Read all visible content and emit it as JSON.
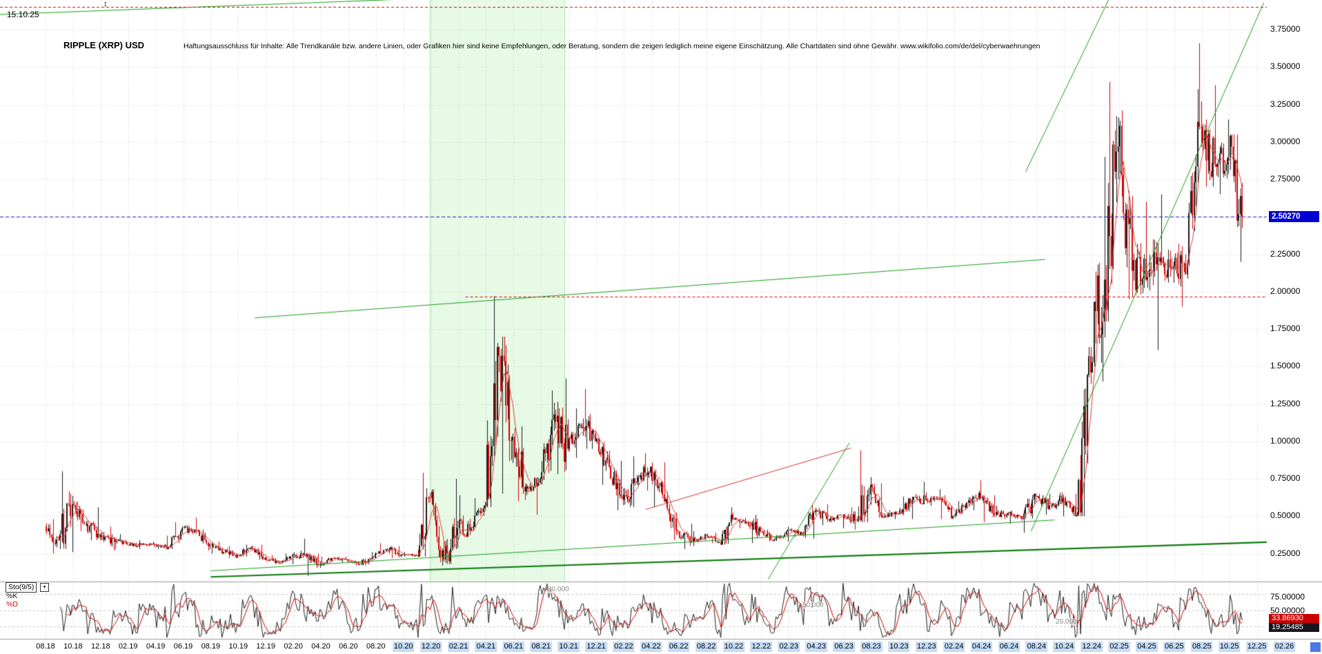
{
  "header": {
    "date": "15.10.25",
    "title": "RIPPLE (XRP) USD",
    "disclaimer": "Haftungsausschluss für Inhalte: Alle Trendkanäle bzw. andere Linien, oder Grafiken hier sind keine Empfehlungen, oder Beratung, sondern die zeigen lediglich meine eigene Einschätzung. Alle Chartdaten sind ohne Gewähr.  www.wikifolio.com/de/del/cyberwaehrungen",
    "resize_marker": "↕"
  },
  "price_axis_marker": {
    "label": "2.50270",
    "value": 2.5027,
    "bg": "#0000d2"
  },
  "x_axis": {
    "highlight_from_index": 13,
    "highlight_bg": "#c5dcf5"
  },
  "stochastic_panel": {
    "indicator_label": "Sto(9/5)",
    "add_button": "+",
    "k_label": "%K",
    "d_label": "%D",
    "guides": [
      {
        "label": "80.000",
        "value": 80
      },
      {
        "label": "50.000",
        "value": 50
      },
      {
        "label": "20.000",
        "value": 20
      }
    ],
    "ticks": [
      "75.00000",
      "50.00000",
      "25.00000"
    ],
    "d_value_box": {
      "label": "33.86930",
      "value": 33.8693,
      "bg": "#cc0000"
    },
    "k_value_box": {
      "label": "19.25485",
      "value": 19.25485,
      "bg": "#16161e"
    }
  },
  "chart_data": {
    "type": "candlestick",
    "title": "RIPPLE (XRP) USD",
    "start_month": "2018-08",
    "months_per_candle": 1,
    "ylim": [
      0,
      3.95
    ],
    "last_price": 2.5027,
    "y_tick_labels": [
      "3.75000",
      "3.50000",
      "3.25000",
      "3.00000",
      "2.75000",
      "2.50000",
      "2.25000",
      "2.00000",
      "1.75000",
      "1.50000",
      "1.25000",
      "1.00000",
      "0.75000",
      "0.50000",
      "0.25000"
    ],
    "x_tick_labels": [
      "08.18",
      "10.18",
      "12.18",
      "02.19",
      "04.19",
      "06.19",
      "08.19",
      "10.19",
      "12.19",
      "02.20",
      "04.20",
      "06.20",
      "08.20",
      "10.20",
      "12.20",
      "02.21",
      "04.21",
      "06.21",
      "08.21",
      "10.21",
      "12.21",
      "02.22",
      "04.22",
      "06.22",
      "08.22",
      "10.22",
      "12.22",
      "02.23",
      "04.23",
      "06.23",
      "08.23",
      "10.23",
      "12.23",
      "02.24",
      "04.24",
      "06.24",
      "08.24",
      "10.24",
      "12.24",
      "02.25",
      "04.25",
      "06.25",
      "08.25",
      "10.25",
      "12.25",
      "02.26"
    ],
    "candles_ohlc": [
      [
        0.43,
        0.48,
        0.25,
        0.34
      ],
      [
        0.34,
        0.8,
        0.26,
        0.58
      ],
      [
        0.58,
        0.6,
        0.4,
        0.45
      ],
      [
        0.45,
        0.56,
        0.34,
        0.36
      ],
      [
        0.36,
        0.43,
        0.27,
        0.35
      ],
      [
        0.35,
        0.38,
        0.28,
        0.31
      ],
      [
        0.31,
        0.34,
        0.28,
        0.31
      ],
      [
        0.31,
        0.33,
        0.29,
        0.31
      ],
      [
        0.31,
        0.37,
        0.28,
        0.29
      ],
      [
        0.29,
        0.46,
        0.28,
        0.42
      ],
      [
        0.42,
        0.49,
        0.38,
        0.4
      ],
      [
        0.4,
        0.41,
        0.27,
        0.31
      ],
      [
        0.31,
        0.33,
        0.25,
        0.26
      ],
      [
        0.26,
        0.3,
        0.22,
        0.24
      ],
      [
        0.24,
        0.31,
        0.23,
        0.29
      ],
      [
        0.29,
        0.31,
        0.21,
        0.22
      ],
      [
        0.22,
        0.24,
        0.18,
        0.19
      ],
      [
        0.19,
        0.25,
        0.18,
        0.24
      ],
      [
        0.24,
        0.35,
        0.22,
        0.23
      ],
      [
        0.23,
        0.25,
        0.1,
        0.18
      ],
      [
        0.18,
        0.23,
        0.17,
        0.22
      ],
      [
        0.22,
        0.23,
        0.19,
        0.2
      ],
      [
        0.2,
        0.21,
        0.17,
        0.18
      ],
      [
        0.18,
        0.26,
        0.17,
        0.25
      ],
      [
        0.25,
        0.32,
        0.25,
        0.28
      ],
      [
        0.28,
        0.3,
        0.22,
        0.24
      ],
      [
        0.24,
        0.26,
        0.23,
        0.24
      ],
      [
        0.24,
        0.79,
        0.23,
        0.62
      ],
      [
        0.62,
        0.68,
        0.17,
        0.21
      ],
      [
        0.21,
        0.75,
        0.18,
        0.42
      ],
      [
        0.42,
        0.64,
        0.36,
        0.42
      ],
      [
        0.42,
        0.62,
        0.4,
        0.57
      ],
      [
        0.57,
        1.97,
        0.56,
        1.57
      ],
      [
        1.57,
        1.7,
        0.65,
        1.03
      ],
      [
        1.03,
        1.1,
        0.6,
        0.7
      ],
      [
        0.7,
        0.76,
        0.51,
        0.75
      ],
      [
        0.75,
        1.34,
        0.71,
        1.18
      ],
      [
        1.18,
        1.42,
        0.78,
        0.95
      ],
      [
        0.95,
        1.22,
        0.89,
        1.09
      ],
      [
        1.09,
        1.35,
        0.95,
        1.0
      ],
      [
        1.0,
        1.02,
        0.71,
        0.83
      ],
      [
        0.83,
        0.87,
        0.54,
        0.61
      ],
      [
        0.61,
        0.9,
        0.56,
        0.73
      ],
      [
        0.73,
        0.92,
        0.67,
        0.83
      ],
      [
        0.83,
        0.86,
        0.56,
        0.6
      ],
      [
        0.6,
        0.66,
        0.34,
        0.4
      ],
      [
        0.4,
        0.45,
        0.28,
        0.33
      ],
      [
        0.33,
        0.4,
        0.3,
        0.38
      ],
      [
        0.38,
        0.39,
        0.32,
        0.33
      ],
      [
        0.33,
        0.56,
        0.31,
        0.48
      ],
      [
        0.48,
        0.49,
        0.42,
        0.46
      ],
      [
        0.46,
        0.51,
        0.32,
        0.4
      ],
      [
        0.4,
        0.41,
        0.33,
        0.34
      ],
      [
        0.34,
        0.43,
        0.33,
        0.41
      ],
      [
        0.41,
        0.42,
        0.36,
        0.38
      ],
      [
        0.38,
        0.58,
        0.35,
        0.54
      ],
      [
        0.54,
        0.58,
        0.44,
        0.47
      ],
      [
        0.47,
        0.51,
        0.42,
        0.51
      ],
      [
        0.51,
        0.56,
        0.41,
        0.47
      ],
      [
        0.47,
        0.94,
        0.46,
        0.71
      ],
      [
        0.71,
        0.72,
        0.49,
        0.5
      ],
      [
        0.5,
        0.54,
        0.48,
        0.52
      ],
      [
        0.52,
        0.63,
        0.48,
        0.61
      ],
      [
        0.61,
        0.73,
        0.58,
        0.61
      ],
      [
        0.61,
        0.68,
        0.57,
        0.62
      ],
      [
        0.62,
        0.64,
        0.48,
        0.5
      ],
      [
        0.5,
        0.6,
        0.49,
        0.59
      ],
      [
        0.59,
        0.74,
        0.54,
        0.62
      ],
      [
        0.62,
        0.64,
        0.46,
        0.51
      ],
      [
        0.51,
        0.57,
        0.48,
        0.52
      ],
      [
        0.52,
        0.54,
        0.45,
        0.48
      ],
      [
        0.48,
        0.65,
        0.39,
        0.63
      ],
      [
        0.63,
        0.65,
        0.51,
        0.57
      ],
      [
        0.57,
        0.66,
        0.5,
        0.62
      ],
      [
        0.62,
        0.65,
        0.5,
        0.51
      ],
      [
        0.51,
        1.63,
        0.5,
        1.46
      ],
      [
        1.46,
        2.9,
        1.4,
        2.08
      ],
      [
        2.08,
        3.4,
        1.8,
        2.97
      ],
      [
        2.97,
        3.21,
        1.95,
        2.14
      ],
      [
        2.14,
        2.6,
        1.98,
        2.08
      ],
      [
        2.08,
        2.35,
        1.61,
        2.2
      ],
      [
        2.2,
        2.65,
        2.06,
        2.17
      ],
      [
        2.17,
        2.32,
        1.9,
        2.19
      ],
      [
        2.19,
        3.66,
        2.17,
        3.1
      ],
      [
        3.1,
        3.38,
        2.7,
        2.85
      ],
      [
        2.85,
        3.15,
        2.65,
        2.9
      ],
      [
        2.9,
        3.05,
        2.2,
        2.5027
      ]
    ],
    "highlight_band": {
      "from_month": 27.9,
      "to_month": 37.7,
      "color": "#e6fae6",
      "border": "#aee6ae"
    },
    "trendlines": [
      {
        "from": [
          -3.7,
          3.85
        ],
        "to": [
          28.0,
          3.96
        ],
        "color": "#18a018",
        "width": 1
      },
      {
        "from": [
          15.2,
          1.825
        ],
        "to": [
          72.6,
          2.215
        ],
        "color": "#18a018",
        "width": 1
      },
      {
        "from": [
          12.0,
          0.095
        ],
        "to": [
          91.5,
          0.335
        ],
        "color": "#0c7a0c",
        "width": 2
      },
      {
        "from": [
          12.0,
          0.135
        ],
        "to": [
          73.3,
          0.475
        ],
        "color": "#18a018",
        "width": 1
      },
      {
        "from": [
          71.6,
          0.4
        ],
        "to": [
          88.5,
          3.93
        ],
        "color": "#18a018",
        "width": 1
      },
      {
        "from": [
          71.2,
          2.8
        ],
        "to": [
          77.6,
          4.02
        ],
        "color": "#18a018",
        "width": 1
      },
      {
        "from": [
          52.5,
          0.08
        ],
        "to": [
          58.4,
          0.99
        ],
        "color": "#18a018",
        "width": 1
      },
      {
        "from": [
          43.6,
          0.545
        ],
        "to": [
          58.5,
          0.955
        ],
        "color": "#e03030",
        "width": 1
      }
    ],
    "hlines": [
      {
        "price": 3.9,
        "color": "#e00000",
        "dash": [
          4,
          3
        ],
        "from_month": -3.7
      },
      {
        "price": 1.965,
        "color": "#e00000",
        "dash": [
          4,
          3
        ],
        "from_month": 30.5
      },
      {
        "price": 2.5027,
        "color": "#2222bb",
        "dash": [
          5,
          3
        ],
        "from_month": -3.7
      }
    ],
    "stochastic": {
      "indicator": "Sto(9/5)",
      "k_period": 9,
      "d_period": 5,
      "range": [
        0,
        100
      ],
      "guides": [
        80,
        50,
        20
      ],
      "k_last": 19.25485,
      "d_last": 33.8693
    }
  }
}
